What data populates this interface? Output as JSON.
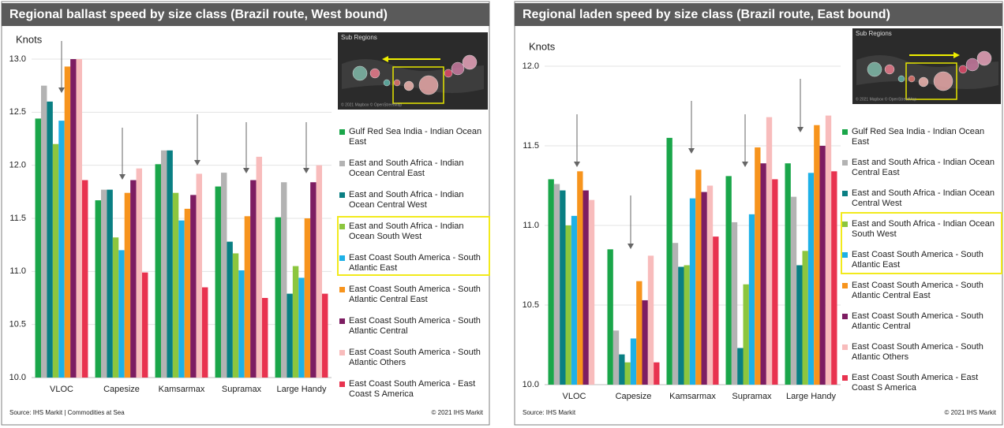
{
  "chart_data": [
    {
      "type": "bar",
      "title": "Regional ballast speed by size class (Brazil route, West bound)",
      "y_label": "Knots",
      "categories": [
        "VLOC",
        "Capesize",
        "Kamsarmax",
        "Supramax",
        "Large Handy"
      ],
      "series": [
        {
          "name": "Gulf Red Sea India - Indian Ocean East",
          "color": "#1aa64a",
          "values": [
            12.44,
            11.67,
            12.01,
            11.8,
            11.51
          ]
        },
        {
          "name": "East and South Africa - Indian Ocean Central East",
          "color": "#b3b3b3",
          "values": [
            12.75,
            11.77,
            12.14,
            11.93,
            11.84
          ]
        },
        {
          "name": "East and South Africa - Indian Ocean Central West",
          "color": "#0a7f83",
          "values": [
            12.6,
            11.77,
            12.14,
            11.28,
            10.79
          ]
        },
        {
          "name": "East and South Africa - Indian Ocean South West",
          "color": "#8cc63e",
          "values": [
            12.2,
            11.32,
            11.74,
            11.17,
            11.05
          ]
        },
        {
          "name": "East Coast South America - South Atlantic East",
          "color": "#1eb1e7",
          "values": [
            12.42,
            11.2,
            11.48,
            11.01,
            10.94
          ]
        },
        {
          "name": "East Coast South America - South Atlantic Central East",
          "color": "#f7941d",
          "values": [
            12.93,
            11.74,
            11.59,
            11.52,
            11.5
          ]
        },
        {
          "name": "East Coast South America - South Atlantic Central",
          "color": "#7d1d62",
          "values": [
            13.0,
            11.86,
            11.72,
            11.86,
            11.84
          ]
        },
        {
          "name": "East Coast South America - South Atlantic Others",
          "color": "#f8bcbc",
          "values": [
            13.0,
            11.97,
            11.92,
            12.08,
            12.0
          ]
        },
        {
          "name": "East Coast South America - East Coast S America",
          "color": "#e8334f",
          "values": [
            11.86,
            10.99,
            10.85,
            10.75,
            10.79
          ]
        }
      ],
      "ylim": [
        10,
        13
      ],
      "yticks": [
        {
          "value": 10,
          "label": "10.0"
        },
        {
          "value": 10.5,
          "label": "10.5"
        },
        {
          "value": 11,
          "label": "11.0"
        },
        {
          "value": 11.5,
          "label": "11.5"
        },
        {
          "value": 12,
          "label": "12.0"
        },
        {
          "value": 12.5,
          "label": "12.5"
        },
        {
          "value": 13,
          "label": "13.0"
        }
      ],
      "grid": true,
      "legend": "right",
      "inset_title": "Sub Regions",
      "inset_credit": "© 2021 Mapbox © OpenStreetMap",
      "source": "Source: IHS Markit | Commodities at Sea",
      "copyright": "© 2021 IHS Markit"
    },
    {
      "type": "bar",
      "title": "Regional laden speed by size class (Brazil route, East bound)",
      "y_label": "Knots",
      "categories": [
        "VLOC",
        "Capesize",
        "Kamsarmax",
        "Supramax",
        "Large Handy"
      ],
      "series": [
        {
          "name": "Gulf Red Sea India - Indian Ocean East",
          "color": "#1aa64a",
          "values": [
            11.29,
            10.85,
            11.55,
            11.31,
            11.39
          ]
        },
        {
          "name": "East and South Africa - Indian Ocean Central East",
          "color": "#b3b3b3",
          "values": [
            11.26,
            10.34,
            10.89,
            11.02,
            11.18
          ]
        },
        {
          "name": "East and South Africa - Indian Ocean Central West",
          "color": "#0a7f83",
          "values": [
            11.22,
            10.19,
            10.74,
            10.23,
            10.75
          ]
        },
        {
          "name": "East and South Africa - Indian Ocean South West",
          "color": "#8cc63e",
          "values": [
            11.0,
            10.14,
            10.75,
            10.63,
            10.84
          ]
        },
        {
          "name": "East Coast South America - South Atlantic East",
          "color": "#1eb1e7",
          "values": [
            11.06,
            10.29,
            11.17,
            11.07,
            11.33
          ]
        },
        {
          "name": "East Coast South America - South Atlantic Central East",
          "color": "#f7941d",
          "values": [
            11.34,
            10.65,
            11.35,
            11.49,
            11.63
          ]
        },
        {
          "name": "East Coast South America - South Atlantic Central",
          "color": "#7d1d62",
          "values": [
            11.22,
            10.53,
            11.21,
            11.39,
            11.5
          ]
        },
        {
          "name": "East Coast South America - South Atlantic Others",
          "color": "#f8bcbc",
          "values": [
            11.16,
            10.81,
            11.25,
            11.68,
            11.69
          ]
        },
        {
          "name": "East Coast South America - East Coast S America",
          "color": "#e8334f",
          "values": [
            null,
            10.14,
            10.93,
            11.29,
            11.34
          ]
        }
      ],
      "ylim": [
        10,
        12
      ],
      "yticks": [
        {
          "value": 10,
          "label": "10.0"
        },
        {
          "value": 10.5,
          "label": "10.5"
        },
        {
          "value": 11,
          "label": "11.0"
        },
        {
          "value": 11.5,
          "label": "11.5"
        },
        {
          "value": 12,
          "label": "12.0"
        }
      ],
      "grid": true,
      "legend": "right",
      "inset_title": "Sub Regions",
      "inset_credit": "© 2021 Mapbox © OpenStreetMap",
      "source": "Source: IHS Markit",
      "copyright": "© 2021 IHS Markit"
    }
  ]
}
